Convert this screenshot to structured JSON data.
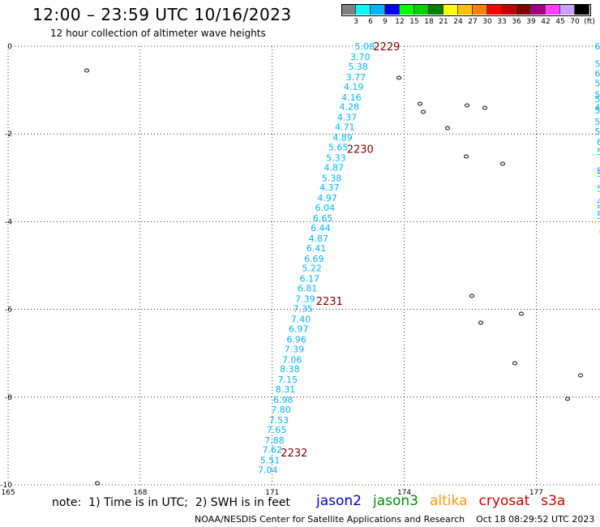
{
  "header": {
    "title": "12:00 – 23:59 UTC 10/16/2023",
    "subtitle": "12 hour collection of altimeter wave heights"
  },
  "legend": {
    "colors": [
      "#808080",
      "#00ffff",
      "#00b4ff",
      "#0000ff",
      "#00ff00",
      "#00d000",
      "#008000",
      "#ffff00",
      "#ffc000",
      "#ff8000",
      "#ff0000",
      "#c00000",
      "#800000",
      "#a00080",
      "#ff40ff",
      "#c8a0ff",
      "#000000"
    ],
    "labels": [
      "3",
      "6",
      "9",
      "12",
      "15",
      "18",
      "21",
      "24",
      "27",
      "30",
      "33",
      "36",
      "39",
      "42",
      "45",
      "70",
      "(ft)"
    ]
  },
  "note": "note:  1) Time is in UTC;  2) SWH is in feet",
  "satellites": [
    {
      "name": "jason2",
      "color": "#0000cc"
    },
    {
      "name": "jason3",
      "color": "#009000"
    },
    {
      "name": "altika",
      "color": "#ff9900"
    },
    {
      "name": "cryosat",
      "color": "#cc0000"
    },
    {
      "name": "s3a",
      "color": "#cc0000"
    }
  ],
  "footer": "NOAA/NESDIS Center for Satellite Applications and Research    Oct 18 08:29:52 UTC 2023",
  "chart_data": {
    "type": "scatter",
    "x_range": [
      165,
      179
    ],
    "y_range": [
      -10,
      0
    ],
    "x_ticks": [
      "165",
      "168",
      "171",
      "174",
      "177"
    ],
    "y_ticks": [
      "0",
      "-2",
      "-4",
      "-6",
      "-8",
      "-10"
    ],
    "grid": true,
    "track_color": "#00b4ff",
    "time_color": "#800000",
    "main_track": [
      {
        "lon": 173.1,
        "lat": 0.0,
        "v": "5.08"
      },
      {
        "lon": 173.0,
        "lat": -0.24,
        "v": "3.70"
      },
      {
        "lon": 172.95,
        "lat": -0.46,
        "v": "5.38"
      },
      {
        "lon": 172.9,
        "lat": -0.7,
        "v": "3.77"
      },
      {
        "lon": 172.85,
        "lat": -0.92,
        "v": "4.19"
      },
      {
        "lon": 172.8,
        "lat": -1.16,
        "v": "4.16"
      },
      {
        "lon": 172.75,
        "lat": -1.38,
        "v": "4.28"
      },
      {
        "lon": 172.7,
        "lat": -1.62,
        "v": "4.37"
      },
      {
        "lon": 172.65,
        "lat": -1.84,
        "v": "4.71"
      },
      {
        "lon": 172.6,
        "lat": -2.08,
        "v": "4.89"
      },
      {
        "lon": 172.5,
        "lat": -2.3,
        "v": "5.65"
      },
      {
        "lon": 172.45,
        "lat": -2.54,
        "v": "5.33"
      },
      {
        "lon": 172.4,
        "lat": -2.76,
        "v": "4.87"
      },
      {
        "lon": 172.35,
        "lat": -3.0,
        "v": "5.38"
      },
      {
        "lon": 172.3,
        "lat": -3.22,
        "v": "4.37"
      },
      {
        "lon": 172.25,
        "lat": -3.46,
        "v": "4.97"
      },
      {
        "lon": 172.2,
        "lat": -3.68,
        "v": "6.04"
      },
      {
        "lon": 172.15,
        "lat": -3.92,
        "v": "6.65"
      },
      {
        "lon": 172.1,
        "lat": -4.14,
        "v": "6.44"
      },
      {
        "lon": 172.05,
        "lat": -4.38,
        "v": "4.87"
      },
      {
        "lon": 172.0,
        "lat": -4.6,
        "v": "6.41"
      },
      {
        "lon": 171.95,
        "lat": -4.84,
        "v": "6.69"
      },
      {
        "lon": 171.9,
        "lat": -5.06,
        "v": "5.22"
      },
      {
        "lon": 171.85,
        "lat": -5.3,
        "v": "6.17"
      },
      {
        "lon": 171.8,
        "lat": -5.52,
        "v": "6.81"
      },
      {
        "lon": 171.75,
        "lat": -5.76,
        "v": "7.39"
      },
      {
        "lon": 171.7,
        "lat": -5.98,
        "v": "7.35"
      },
      {
        "lon": 171.65,
        "lat": -6.22,
        "v": "7.40"
      },
      {
        "lon": 171.6,
        "lat": -6.44,
        "v": "6.97"
      },
      {
        "lon": 171.55,
        "lat": -6.68,
        "v": "6.96"
      },
      {
        "lon": 171.5,
        "lat": -6.9,
        "v": "7.39"
      },
      {
        "lon": 171.45,
        "lat": -7.14,
        "v": "7.06"
      },
      {
        "lon": 171.4,
        "lat": -7.36,
        "v": "8.38"
      },
      {
        "lon": 171.35,
        "lat": -7.6,
        "v": "7.15"
      },
      {
        "lon": 171.3,
        "lat": -7.82,
        "v": "8.31"
      },
      {
        "lon": 171.25,
        "lat": -8.06,
        "v": "6.98"
      },
      {
        "lon": 171.2,
        "lat": -8.28,
        "v": "7.80"
      },
      {
        "lon": 171.15,
        "lat": -8.52,
        "v": "7.53"
      },
      {
        "lon": 171.1,
        "lat": -8.74,
        "v": "7.65"
      },
      {
        "lon": 171.05,
        "lat": -8.98,
        "v": "7.88"
      },
      {
        "lon": 171.0,
        "lat": -9.2,
        "v": "7.62"
      },
      {
        "lon": 170.95,
        "lat": -9.44,
        "v": "5.51"
      },
      {
        "lon": 170.9,
        "lat": -9.66,
        "v": "7.04"
      }
    ],
    "time_labels": [
      {
        "lon": 173.6,
        "lat": 0.0,
        "t": "2229"
      },
      {
        "lon": 173.0,
        "lat": -2.34,
        "t": "2230"
      },
      {
        "lon": 172.3,
        "lat": -5.8,
        "t": "2231"
      },
      {
        "lon": 171.5,
        "lat": -9.26,
        "t": "2232"
      }
    ],
    "right_track": [
      {
        "lon": 178.55,
        "lat": 0.0,
        "v": "6.44"
      },
      {
        "lon": 178.55,
        "lat": -0.4,
        "v": "5.19"
      },
      {
        "lon": 178.55,
        "lat": -0.62,
        "v": "6.24"
      },
      {
        "lon": 178.55,
        "lat": -0.84,
        "v": "5.34"
      },
      {
        "lon": 178.55,
        "lat": -1.1,
        "v": "5.43"
      },
      {
        "lon": 178.55,
        "lat": -1.2,
        "v": "5.48"
      },
      {
        "lon": 178.55,
        "lat": -1.4,
        "v": "4.78"
      },
      {
        "lon": 178.55,
        "lat": -1.46,
        "v": "5.16"
      },
      {
        "lon": 178.55,
        "lat": -1.72,
        "v": "5.45"
      },
      {
        "lon": 178.55,
        "lat": -1.94,
        "v": "5.36"
      },
      {
        "lon": 178.6,
        "lat": -2.18,
        "v": "6.66"
      },
      {
        "lon": 178.6,
        "lat": -2.4,
        "v": "5.45"
      },
      {
        "lon": 178.6,
        "lat": -2.84,
        "v": "5.45"
      },
      {
        "lon": 178.6,
        "lat": -2.9,
        "v": "5.02"
      },
      {
        "lon": 178.6,
        "lat": -3.24,
        "v": "5.34"
      },
      {
        "lon": 178.6,
        "lat": -3.54,
        "v": "4.97"
      },
      {
        "lon": 178.6,
        "lat": -3.7,
        "v": "5.08"
      },
      {
        "lon": 178.6,
        "lat": -3.86,
        "v": "5.43"
      },
      {
        "lon": 178.65,
        "lat": -4.22,
        "v": "6.08"
      },
      {
        "lon": 178.7,
        "lat": -4.44,
        "v": "5.72"
      },
      {
        "lon": 178.7,
        "lat": -4.54,
        "v": "6.29"
      },
      {
        "lon": 178.75,
        "lat": -4.98,
        "v": "6.22"
      },
      {
        "lon": 178.75,
        "lat": -5.12,
        "v": "7.43"
      },
      {
        "lon": 178.75,
        "lat": -5.22,
        "v": "7.39"
      },
      {
        "lon": 178.8,
        "lat": -5.58,
        "v": "7.32"
      },
      {
        "lon": 178.85,
        "lat": -5.84,
        "v": "6.81"
      },
      {
        "lon": 178.85,
        "lat": -6.04,
        "v": "7.71"
      },
      {
        "lon": 178.85,
        "lat": -6.24,
        "v": "6.87"
      },
      {
        "lon": 178.85,
        "lat": -6.44,
        "v": "8.34"
      },
      {
        "lon": 178.85,
        "lat": -6.62,
        "v": "8.08"
      },
      {
        "lon": 178.85,
        "lat": -6.82,
        "v": "8.11"
      },
      {
        "lon": 178.85,
        "lat": -7.0,
        "v": "8.74"
      },
      {
        "lon": 179.0,
        "lat": -8.12,
        "v": "9"
      },
      {
        "lon": 179.05,
        "lat": -8.6,
        "v": "4"
      },
      {
        "lon": 179.05,
        "lat": -8.8,
        "v": "7"
      },
      {
        "lon": 179.05,
        "lat": -9.0,
        "v": "7"
      },
      {
        "lon": 179.05,
        "lat": -9.2,
        "v": "6"
      }
    ],
    "red_partial": [
      {
        "lon": 179.05,
        "lat": 0.0,
        "v": "13"
      },
      {
        "lon": 179.1,
        "lat": -0.62,
        "v": "13"
      },
      {
        "lon": 179.2,
        "lat": -1.72,
        "v": "1"
      },
      {
        "lon": 179.2,
        "lat": -1.94,
        "v": "1"
      }
    ]
  }
}
